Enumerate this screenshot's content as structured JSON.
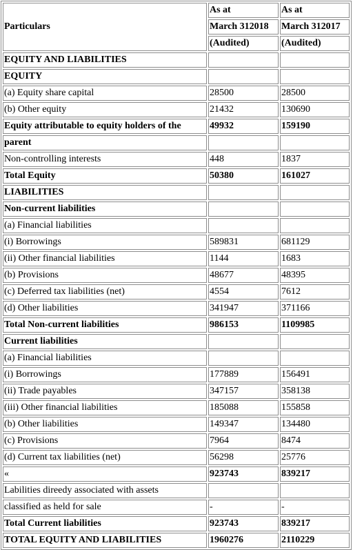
{
  "header": {
    "particulars": "Particulars",
    "col1": [
      "As at",
      "March 312018",
      "(Audited)"
    ],
    "col2": [
      "As at",
      "March 312017",
      "(Audited)"
    ]
  },
  "rows": [
    {
      "label": "EQUITY AND LIABILITIES",
      "v1": "",
      "v2": "",
      "bold": true
    },
    {
      "label": "EQUITY",
      "v1": "",
      "v2": "",
      "bold": true
    },
    {
      "label": "(a) Equity share capital",
      "v1": "28500",
      "v2": "28500",
      "bold": false
    },
    {
      "label": "(b) Other equity",
      "v1": "21432",
      "v2": "130690",
      "bold": false
    },
    {
      "label": "Equity attributable to equity holders of the",
      "v1": "49932",
      "v2": "159190",
      "bold": true
    },
    {
      "label": "parent",
      "v1": "",
      "v2": "",
      "bold": true
    },
    {
      "label": "Non-controlling interests",
      "v1": "448",
      "v2": "1837",
      "bold": false
    },
    {
      "label": "Total Equity",
      "v1": "50380",
      "v2": "161027",
      "bold": true
    },
    {
      "label": "LIABILITIES",
      "v1": "",
      "v2": "",
      "bold": true
    },
    {
      "label": "Non-current liabilities",
      "v1": "",
      "v2": "",
      "bold": true
    },
    {
      "label": "(a) Financial liabilities",
      "v1": "",
      "v2": "",
      "bold": false
    },
    {
      "label": "(i) Borrowings",
      "v1": "589831",
      "v2": "681129",
      "bold": false
    },
    {
      "label": "(ii) Other financial liabilities",
      "v1": "1144",
      "v2": "1683",
      "bold": false
    },
    {
      "label": "(b) Provisions",
      "v1": "48677",
      "v2": "48395",
      "bold": false
    },
    {
      "label": "(c) Deferred tax liabilities (net)",
      "v1": "4554",
      "v2": "7612",
      "bold": false
    },
    {
      "label": "(d) Other liabilities",
      "v1": "341947",
      "v2": "371166",
      "bold": false
    },
    {
      "label": "Total Non-current liabilities",
      "v1": "986153",
      "v2": "1109985",
      "bold": true
    },
    {
      "label": "Current liabilities",
      "v1": "",
      "v2": "",
      "bold": true
    },
    {
      "label": "(a) Financial liabilities",
      "v1": "",
      "v2": "",
      "bold": false
    },
    {
      "label": "(i) Borrowings",
      "v1": "177889",
      "v2": "156491",
      "bold": false
    },
    {
      "label": "(ii) Trade payables",
      "v1": "347157",
      "v2": "358138",
      "bold": false
    },
    {
      "label": "(iii) Other financial liabilities",
      "v1": "185088",
      "v2": "155858",
      "bold": false
    },
    {
      "label": "(b) Other liabilities",
      "v1": "149347",
      "v2": "134480",
      "bold": false
    },
    {
      "label": "(c) Provisions",
      "v1": "7964",
      "v2": "8474",
      "bold": false
    },
    {
      "label": "(d) Current tax liabilities (net)",
      "v1": "56298",
      "v2": "25776",
      "bold": false
    },
    {
      "label": "«",
      "v1": "923743",
      "v2": "839217",
      "bold": false,
      "valBold": true
    },
    {
      "label": "Labilities direedy associated with assets",
      "v1": "",
      "v2": "",
      "bold": false
    },
    {
      "label": "classified as held for sale",
      "v1": "-",
      "v2": "-",
      "bold": false
    },
    {
      "label": "Total Current liabilities",
      "v1": "923743",
      "v2": "839217",
      "bold": true
    },
    {
      "label": "TOTAL EQUITY AND LIABILITIES",
      "v1": "1960276",
      "v2": "2110229",
      "bold": true
    }
  ]
}
